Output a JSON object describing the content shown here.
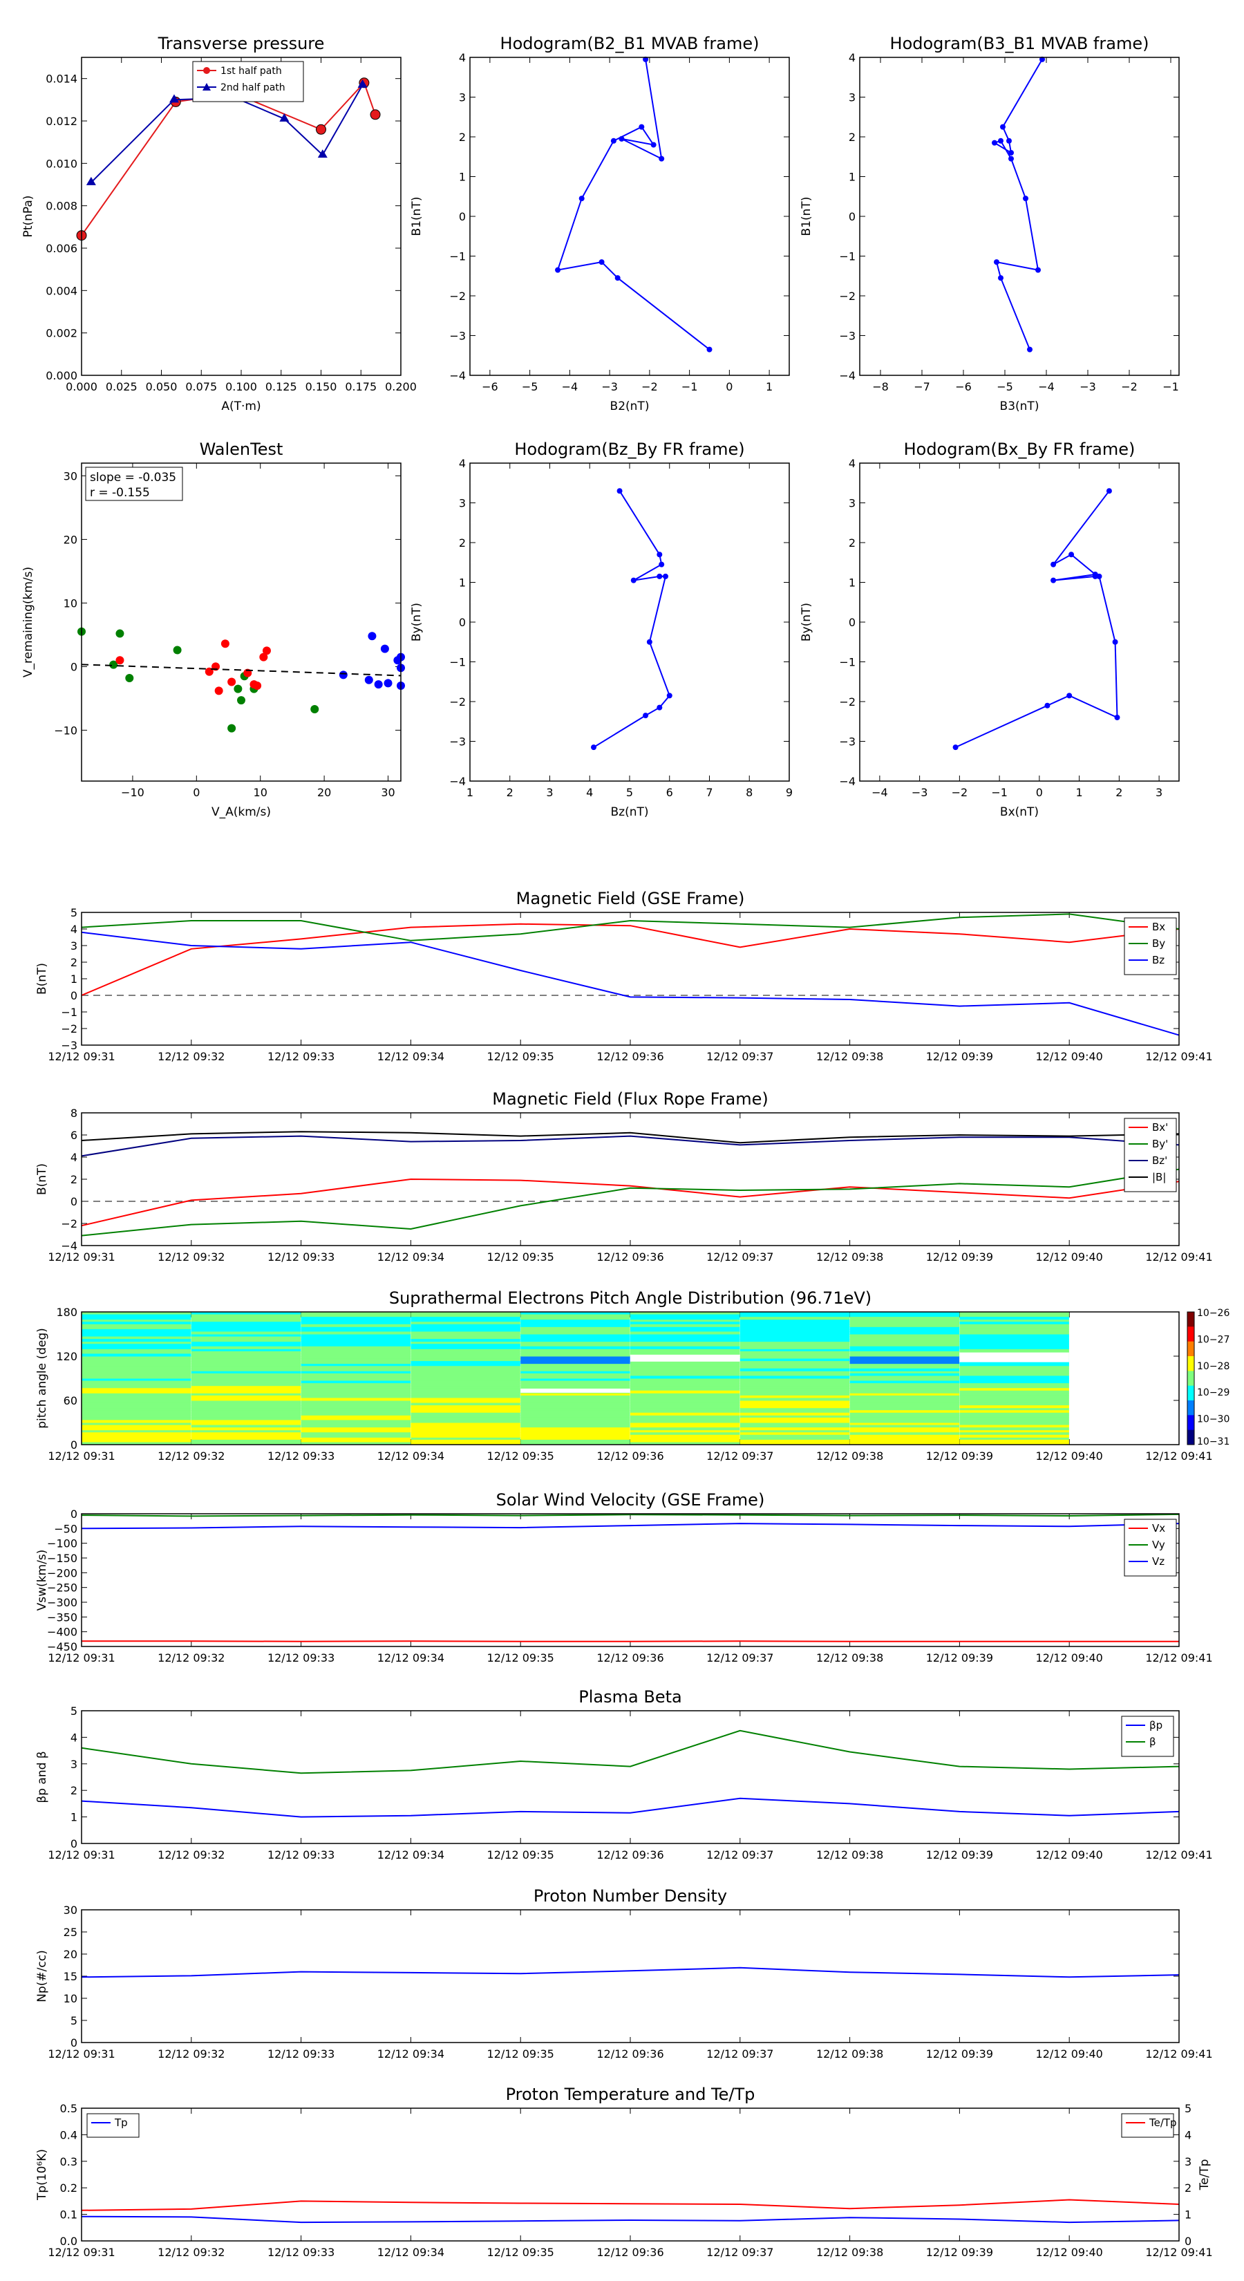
{
  "chart_data": [
    {
      "id": "pt",
      "type": "line",
      "title": "Transverse pressure",
      "xlabel": "A(T·m)",
      "ylabel": "Pt(nPa)",
      "xlim": [
        0.0,
        0.2
      ],
      "ylim": [
        0.0,
        0.015
      ],
      "xticks": [
        0.0,
        0.025,
        0.05,
        0.075,
        0.1,
        0.125,
        0.15,
        0.175,
        0.2
      ],
      "xtick_labels": [
        "0.000",
        "0.025",
        "0.050",
        "0.075",
        "0.100",
        "0.125",
        "0.150",
        "0.175",
        "0.200"
      ],
      "yticks": [
        0.0,
        0.002,
        0.004,
        0.006,
        0.008,
        0.01,
        0.012,
        0.014
      ],
      "ytick_labels": [
        "0.000",
        "0.002",
        "0.004",
        "0.006",
        "0.008",
        "0.010",
        "0.012",
        "0.014"
      ],
      "legend": "top-center",
      "series": [
        {
          "name": "1st half path",
          "color": "#e41a1c",
          "marker": "circle",
          "x": [
            0.0,
            0.059,
            0.096,
            0.15,
            0.177,
            0.184
          ],
          "y": [
            0.0066,
            0.0129,
            0.0133,
            0.0116,
            0.0138,
            0.0123
          ]
        },
        {
          "name": "2nd half path",
          "color": "#0000aa",
          "marker": "triangle",
          "x": [
            0.006,
            0.058,
            0.096,
            0.127,
            0.151,
            0.176
          ],
          "y": [
            0.0091,
            0.013,
            0.0131,
            0.0121,
            0.0104,
            0.0137
          ]
        }
      ]
    },
    {
      "id": "h21",
      "type": "line",
      "title": "Hodogram(B2_B1 MVAB frame)",
      "xlabel": "B2(nT)",
      "ylabel": "B1(nT)",
      "xlim": [
        -6.5,
        1.5
      ],
      "ylim": [
        -4,
        4
      ],
      "xticks": [
        -6,
        -5,
        -4,
        -3,
        -2,
        -1,
        0,
        1
      ],
      "xtick_labels": [
        "−6",
        "−5",
        "−4",
        "−3",
        "−2",
        "−1",
        "0",
        "1"
      ],
      "yticks": [
        -4,
        -3,
        -2,
        -1,
        0,
        1,
        2,
        3,
        4
      ],
      "ytick_labels": [
        "−4",
        "−3",
        "−2",
        "−1",
        "0",
        "1",
        "2",
        "3",
        "4"
      ],
      "series": [
        {
          "name": "",
          "color": "#0000ff",
          "marker": "dot",
          "x": [
            -0.5,
            -2.8,
            -3.2,
            -4.3,
            -3.7,
            -2.9,
            -2.2,
            -1.9,
            -2.7,
            -1.7,
            -2.1
          ],
          "y": [
            -3.35,
            -1.55,
            -1.15,
            -1.35,
            0.45,
            1.9,
            2.25,
            1.8,
            1.95,
            1.45,
            3.95
          ]
        }
      ]
    },
    {
      "id": "h31",
      "type": "line",
      "title": "Hodogram(B3_B1 MVAB frame)",
      "xlabel": "B3(nT)",
      "ylabel": "B1(nT)",
      "xlim": [
        -8.5,
        -0.8
      ],
      "ylim": [
        -4,
        4
      ],
      "xticks": [
        -8,
        -7,
        -6,
        -5,
        -4,
        -3,
        -2,
        -1
      ],
      "xtick_labels": [
        "−8",
        "−7",
        "−6",
        "−5",
        "−4",
        "−3",
        "−2",
        "−1"
      ],
      "yticks": [
        -4,
        -3,
        -2,
        -1,
        0,
        1,
        2,
        3,
        4
      ],
      "ytick_labels": [
        "−4",
        "−3",
        "−2",
        "−1",
        "0",
        "1",
        "2",
        "3",
        "4"
      ],
      "series": [
        {
          "name": "",
          "color": "#0000ff",
          "marker": "dot",
          "x": [
            -4.4,
            -5.1,
            -5.2,
            -4.2,
            -4.5,
            -4.85,
            -5.1,
            -5.25,
            -4.85,
            -4.9,
            -5.05,
            -4.1
          ],
          "y": [
            -3.35,
            -1.55,
            -1.15,
            -1.35,
            0.45,
            1.45,
            1.9,
            1.85,
            1.6,
            1.9,
            2.25,
            3.95
          ]
        }
      ]
    },
    {
      "id": "walen",
      "type": "scatter",
      "title": "WalenTest",
      "xlabel": "V_A(km/s)",
      "ylabel": "V_remaining(km/s)",
      "xlim": [
        -18,
        32
      ],
      "ylim": [
        -18,
        32
      ],
      "xticks": [
        -10,
        0,
        10,
        20,
        30
      ],
      "xtick_labels": [
        "−10",
        "0",
        "10",
        "20",
        "30"
      ],
      "yticks": [
        -10,
        0,
        10,
        20,
        30
      ],
      "ytick_labels": [
        "−10",
        "0",
        "10",
        "20",
        "30"
      ],
      "annotation": [
        "slope = -0.035",
        "r = -0.155"
      ],
      "fit": {
        "slope": -0.035,
        "intercept": -0.3,
        "color": "#000000"
      },
      "series": [
        {
          "name": "",
          "color": "#008000",
          "x": [
            -18,
            -13,
            -12,
            -10.5,
            -3,
            5.5,
            6.5,
            7,
            7.5,
            9,
            18.5
          ],
          "y": [
            5.5,
            0.3,
            5.2,
            -1.8,
            2.6,
            -9.7,
            -3.5,
            -5.3,
            -1.5,
            -3.5,
            -6.7
          ]
        },
        {
          "name": "",
          "color": "#ff0000",
          "x": [
            -12,
            2,
            3,
            3.5,
            4.5,
            5.5,
            8,
            9,
            9.5,
            10.5,
            11
          ],
          "y": [
            1.0,
            -0.8,
            0.0,
            -3.8,
            3.6,
            -2.4,
            -1.0,
            -2.8,
            -3.0,
            1.5,
            2.5
          ]
        },
        {
          "name": "",
          "color": "#0000ff",
          "x": [
            23,
            27,
            27.5,
            28.5,
            29.5,
            30,
            31.5,
            32,
            32,
            32
          ],
          "y": [
            -1.3,
            -2.1,
            4.8,
            -2.8,
            2.8,
            -2.6,
            1.0,
            1.5,
            -0.2,
            -3.0
          ]
        }
      ]
    },
    {
      "id": "hzy",
      "type": "line",
      "title": "Hodogram(Bz_By FR frame)",
      "xlabel": "Bz(nT)",
      "ylabel": "By(nT)",
      "xlim": [
        1,
        9
      ],
      "ylim": [
        -4,
        4
      ],
      "xticks": [
        1,
        2,
        3,
        4,
        5,
        6,
        7,
        8,
        9
      ],
      "xtick_labels": [
        "1",
        "2",
        "3",
        "4",
        "5",
        "6",
        "7",
        "8",
        "9"
      ],
      "yticks": [
        -4,
        -3,
        -2,
        -1,
        0,
        1,
        2,
        3,
        4
      ],
      "ytick_labels": [
        "−4",
        "−3",
        "−2",
        "−1",
        "0",
        "1",
        "2",
        "3",
        "4"
      ],
      "series": [
        {
          "name": "",
          "color": "#0000ff",
          "marker": "dot",
          "x": [
            4.1,
            5.4,
            5.75,
            6.0,
            5.5,
            5.9,
            5.75,
            5.1,
            5.8,
            5.75,
            4.75
          ],
          "y": [
            -3.15,
            -2.35,
            -2.15,
            -1.85,
            -0.5,
            1.15,
            1.15,
            1.05,
            1.45,
            1.7,
            3.3
          ]
        }
      ]
    },
    {
      "id": "hxy",
      "type": "line",
      "title": "Hodogram(Bx_By FR frame)",
      "xlabel": "Bx(nT)",
      "ylabel": "By(nT)",
      "xlim": [
        -4.5,
        3.5
      ],
      "ylim": [
        -4,
        4
      ],
      "xticks": [
        -4,
        -3,
        -2,
        -1,
        0,
        1,
        2,
        3
      ],
      "xtick_labels": [
        "−4",
        "−3",
        "−2",
        "−1",
        "0",
        "1",
        "2",
        "3"
      ],
      "yticks": [
        -4,
        -3,
        -2,
        -1,
        0,
        1,
        2,
        3,
        4
      ],
      "ytick_labels": [
        "−4",
        "−3",
        "−2",
        "−1",
        "0",
        "1",
        "2",
        "3",
        "4"
      ],
      "series": [
        {
          "name": "",
          "color": "#0000ff",
          "marker": "dot",
          "x": [
            -2.1,
            0.2,
            0.75,
            1.95,
            1.9,
            1.5,
            1.4,
            0.35,
            1.4,
            0.8,
            0.35,
            1.75
          ],
          "y": [
            -3.15,
            -2.1,
            -1.85,
            -2.4,
            -0.5,
            1.15,
            1.15,
            1.05,
            1.2,
            1.7,
            1.45,
            3.3
          ]
        }
      ]
    },
    {
      "id": "bgse",
      "type": "line",
      "title": "Magnetic Field (GSE Frame)",
      "xlabel": "",
      "ylabel": "B(nT)",
      "xlim": [
        0,
        10
      ],
      "ylim": [
        -3,
        5
      ],
      "yticks": [
        -3,
        -2,
        -1,
        0,
        1,
        2,
        3,
        4,
        5
      ],
      "ytick_labels": [
        "−3",
        "−2",
        "−1",
        "0",
        "1",
        "2",
        "3",
        "4",
        "5"
      ],
      "zero_line": true,
      "legend": "right",
      "series": [
        {
          "name": "Bx",
          "color": "#ff0000",
          "values": [
            0.0,
            2.8,
            3.4,
            4.1,
            4.3,
            4.2,
            2.9,
            4.0,
            3.7,
            3.2,
            4.0
          ]
        },
        {
          "name": "By",
          "color": "#008000",
          "values": [
            4.1,
            4.5,
            4.5,
            3.3,
            3.7,
            4.5,
            4.3,
            4.1,
            4.7,
            4.9,
            4.0
          ]
        },
        {
          "name": "Bz",
          "color": "#0000ff",
          "values": [
            3.8,
            3.0,
            2.8,
            3.2,
            1.5,
            -0.1,
            -0.15,
            -0.25,
            -0.65,
            -0.45,
            -2.4
          ]
        }
      ]
    },
    {
      "id": "bfr",
      "type": "line",
      "title": "Magnetic Field (Flux Rope Frame)",
      "xlabel": "",
      "ylabel": "B(nT)",
      "xlim": [
        0,
        10
      ],
      "ylim": [
        -4,
        8
      ],
      "yticks": [
        -4,
        -2,
        0,
        2,
        4,
        6,
        8
      ],
      "ytick_labels": [
        "−4",
        "−2",
        "0",
        "2",
        "4",
        "6",
        "8"
      ],
      "zero_line": true,
      "legend": "right",
      "series": [
        {
          "name": "Bx'",
          "color": "#ff0000",
          "values": [
            -2.2,
            0.1,
            0.7,
            2.0,
            1.9,
            1.4,
            0.4,
            1.3,
            0.8,
            0.3,
            1.8
          ]
        },
        {
          "name": "By'",
          "color": "#008000",
          "values": [
            -3.1,
            -2.1,
            -1.8,
            -2.5,
            -0.4,
            1.2,
            1.0,
            1.1,
            1.6,
            1.3,
            2.9
          ]
        },
        {
          "name": "Bz'",
          "color": "#00007f",
          "values": [
            4.1,
            5.7,
            5.9,
            5.4,
            5.5,
            5.9,
            5.1,
            5.5,
            5.8,
            5.8,
            5.1
          ]
        },
        {
          "name": "|B|",
          "color": "#000000",
          "values": [
            5.5,
            6.1,
            6.3,
            6.2,
            5.9,
            6.2,
            5.3,
            5.8,
            6.0,
            5.9,
            6.1
          ]
        }
      ]
    },
    {
      "id": "pad",
      "type": "heatmap",
      "title": "Suprathermal Electrons Pitch Angle Distribution (96.71eV)",
      "xlabel": "",
      "ylabel": "pitch angle (deg)",
      "xlim": [
        0,
        10
      ],
      "ylim": [
        0,
        180
      ],
      "yticks": [
        0,
        60,
        120,
        180
      ],
      "ytick_labels": [
        "0",
        "60",
        "120",
        "180"
      ],
      "colorbar_labels": [
        "10−26",
        "10−27",
        "10−28",
        "10−29",
        "10−30",
        "10−31"
      ],
      "columns": 9,
      "rows": 18
    },
    {
      "id": "vsw",
      "type": "line",
      "title": "Solar Wind Velocity (GSE Frame)",
      "xlabel": "",
      "ylabel": "Vsw(km/s)",
      "xlim": [
        0,
        10
      ],
      "ylim": [
        -450,
        0
      ],
      "yticks": [
        -450,
        -400,
        -350,
        -300,
        -250,
        -200,
        -150,
        -100,
        -50,
        0
      ],
      "ytick_labels": [
        "−450",
        "−400",
        "−350",
        "−300",
        "−250",
        "−200",
        "−150",
        "−100",
        "−50",
        "0"
      ],
      "legend": "right",
      "series": [
        {
          "name": "Vx",
          "color": "#ff0000",
          "values": [
            -432,
            -432,
            -433,
            -432,
            -433,
            -433,
            -432,
            -433,
            -433,
            -433,
            -433
          ]
        },
        {
          "name": "Vy",
          "color": "#008000",
          "values": [
            -5,
            -8,
            -6,
            -4,
            -6,
            -3,
            -4,
            -6,
            -5,
            -7,
            -2
          ]
        },
        {
          "name": "Vz",
          "color": "#0000ff",
          "values": [
            -50,
            -48,
            -43,
            -45,
            -47,
            -40,
            -33,
            -36,
            -40,
            -43,
            -33
          ]
        }
      ]
    },
    {
      "id": "beta",
      "type": "line",
      "title": "Plasma Beta",
      "xlabel": "",
      "ylabel": "βp and β",
      "xlim": [
        0,
        10
      ],
      "ylim": [
        0,
        5
      ],
      "yticks": [
        0,
        1,
        2,
        3,
        4,
        5
      ],
      "ytick_labels": [
        "0",
        "1",
        "2",
        "3",
        "4",
        "5"
      ],
      "legend": "top-right",
      "series": [
        {
          "name": "βp",
          "color": "#0000ff",
          "values": [
            1.6,
            1.35,
            1.0,
            1.05,
            1.2,
            1.15,
            1.7,
            1.5,
            1.2,
            1.05,
            1.2
          ]
        },
        {
          "name": "β",
          "color": "#008000",
          "values": [
            3.6,
            3.0,
            2.65,
            2.75,
            3.1,
            2.9,
            4.25,
            3.45,
            2.9,
            2.8,
            2.9
          ]
        }
      ]
    },
    {
      "id": "np",
      "type": "line",
      "title": "Proton Number Density",
      "xlabel": "",
      "ylabel": "Np(#/cc)",
      "xlim": [
        0,
        10
      ],
      "ylim": [
        0,
        30
      ],
      "yticks": [
        0,
        5,
        10,
        15,
        20,
        25,
        30
      ],
      "ytick_labels": [
        "0",
        "5",
        "10",
        "15",
        "20",
        "25",
        "30"
      ],
      "series": [
        {
          "name": "",
          "color": "#0000ff",
          "values": [
            14.8,
            15.1,
            16.0,
            15.8,
            15.6,
            16.2,
            16.9,
            15.9,
            15.4,
            14.8,
            15.3
          ]
        }
      ]
    },
    {
      "id": "tp",
      "type": "line",
      "title": "Proton Temperature and Te/Tp",
      "xlabel": "",
      "ylabel": "Tp(10⁶K)",
      "ylabel_right": "Te/Tp",
      "xlim": [
        0,
        10
      ],
      "ylim": [
        0,
        0.5
      ],
      "ylim_right": [
        0,
        5
      ],
      "yticks": [
        0,
        0.1,
        0.2,
        0.3,
        0.4,
        0.5
      ],
      "ytick_labels": [
        "0.0",
        "0.1",
        "0.2",
        "0.3",
        "0.4",
        "0.5"
      ],
      "yticks_right": [
        0,
        1,
        2,
        3,
        4,
        5
      ],
      "ytick_labels_right": [
        "0",
        "1",
        "2",
        "3",
        "4",
        "5"
      ],
      "legend": "top-left",
      "legend_right": "top-right",
      "series": [
        {
          "name": "Tp",
          "color": "#0000ff",
          "axis": "left",
          "values": [
            0.092,
            0.09,
            0.07,
            0.072,
            0.075,
            0.078,
            0.076,
            0.088,
            0.082,
            0.07,
            0.077
          ]
        },
        {
          "name": "Te/Tp",
          "color": "#ff0000",
          "axis": "right",
          "values": [
            1.15,
            1.2,
            1.5,
            1.45,
            1.42,
            1.4,
            1.38,
            1.22,
            1.35,
            1.55,
            1.38
          ]
        }
      ]
    }
  ],
  "time_labels": [
    "12/12 09:31",
    "12/12 09:32",
    "12/12 09:33",
    "12/12 09:34",
    "12/12 09:35",
    "12/12 09:36",
    "12/12 09:37",
    "12/12 09:38",
    "12/12 09:39",
    "12/12 09:40",
    "12/12 09:41"
  ]
}
